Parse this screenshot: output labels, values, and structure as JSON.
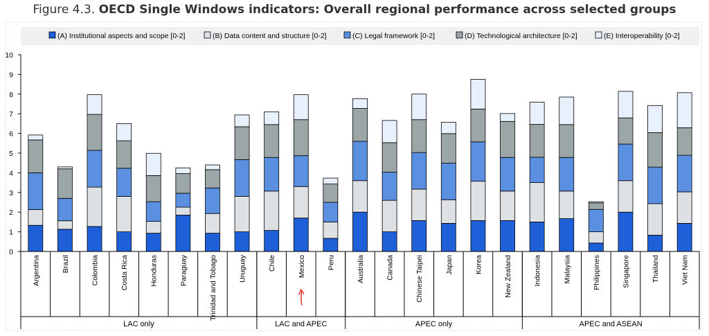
{
  "title": {
    "prefix": "Figure 4.3.",
    "main": "OECD Single Windows indicators: Overall regional performance across selected groups"
  },
  "annotation_mark": "↑",
  "chart_data": {
    "type": "bar",
    "stacked": true,
    "ylim": [
      0,
      10
    ],
    "yticks": [
      0,
      1,
      2,
      3,
      4,
      5,
      6,
      7,
      8,
      9,
      10
    ],
    "categories": [
      "Argentina",
      "Brazil",
      "Colombia",
      "Costa Rica",
      "Honduras",
      "Paraguay",
      "Trinidad and Tobago",
      "Uruguay",
      "Chile",
      "Mexico",
      "Peru",
      "Australia",
      "Canada",
      "Chinese Taipei",
      "Japan",
      "Korea",
      "New Zealand",
      "Indonesia",
      "Malaysia",
      "Philippines",
      "Singapore",
      "Thailand",
      "Viet Nam"
    ],
    "groups": [
      {
        "label": "LAC only",
        "count": 8
      },
      {
        "label": "LAC and APEC",
        "count": 3
      },
      {
        "label": "APEC only",
        "count": 6
      },
      {
        "label": "APEC and ASEAN",
        "count": 6
      }
    ],
    "legend_position": "top",
    "series": [
      {
        "name": "(A) Institutional aspects and scope [0-2]",
        "color": "#1f5fd8",
        "values": [
          1.33,
          1.13,
          1.27,
          1.0,
          0.93,
          1.85,
          0.93,
          1.0,
          1.07,
          1.7,
          0.67,
          2.0,
          1.0,
          1.57,
          1.43,
          1.57,
          1.57,
          1.5,
          1.67,
          0.43,
          2.0,
          0.83,
          1.43
        ]
      },
      {
        "name": "(B) Data content and structure [0-2]",
        "color": "#dde1e3",
        "values": [
          0.8,
          0.43,
          2.0,
          1.8,
          0.6,
          0.4,
          1.0,
          1.8,
          2.0,
          1.6,
          0.83,
          1.6,
          1.6,
          1.6,
          1.2,
          2.0,
          1.5,
          2.0,
          1.4,
          0.57,
          1.6,
          1.6,
          1.6
        ]
      },
      {
        "name": "(C) Legal framework [0-2]",
        "color": "#5b8fe0",
        "values": [
          1.87,
          1.14,
          1.87,
          1.43,
          1.0,
          0.71,
          1.3,
          1.87,
          1.71,
          1.57,
          1.0,
          2.0,
          1.43,
          1.86,
          1.86,
          2.0,
          1.71,
          1.29,
          1.71,
          1.14,
          1.86,
          1.86,
          1.86
        ]
      },
      {
        "name": "(D) Technological architecture [0-2]",
        "color": "#9ca6a6",
        "values": [
          1.67,
          1.5,
          1.83,
          1.4,
          1.33,
          1.0,
          0.93,
          1.67,
          1.67,
          1.83,
          0.93,
          1.67,
          1.5,
          1.67,
          1.5,
          1.67,
          1.83,
          1.67,
          1.67,
          0.33,
          1.33,
          1.75,
          1.4
        ]
      },
      {
        "name": "(E) Interoperability [0-2]",
        "color": "#e8f0fb",
        "values": [
          0.25,
          0.1,
          1.0,
          0.87,
          1.13,
          0.29,
          0.24,
          0.6,
          0.65,
          1.27,
          0.3,
          0.5,
          1.13,
          1.3,
          0.58,
          1.51,
          0.4,
          1.13,
          1.4,
          0.06,
          1.35,
          1.38,
          1.78
        ]
      }
    ]
  }
}
